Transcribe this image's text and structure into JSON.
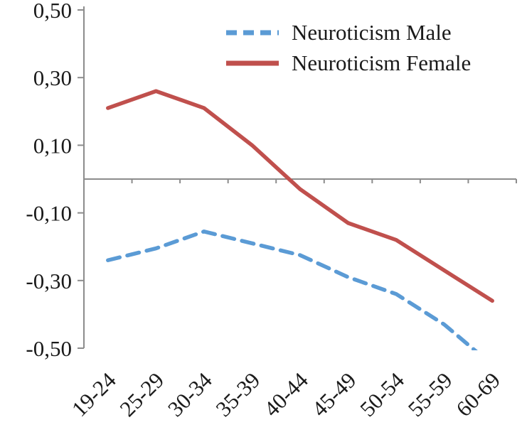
{
  "chart_data": {
    "type": "line",
    "title": "",
    "xlabel": "",
    "ylabel": "",
    "categories": [
      "19-24",
      "25-29",
      "30-34",
      "35-39",
      "40-44",
      "45-49",
      "50-54",
      "55-59",
      "60-69"
    ],
    "series": [
      {
        "name": "Neuroticism Male",
        "color": "#5B9BD5",
        "style": "dashed",
        "values": [
          -0.24,
          -0.205,
          -0.155,
          -0.19,
          -0.225,
          -0.29,
          -0.34,
          -0.43,
          -0.55
        ]
      },
      {
        "name": "Neuroticism Female",
        "color": "#C0504D",
        "style": "solid",
        "values": [
          0.21,
          0.26,
          0.21,
          0.1,
          -0.03,
          -0.13,
          -0.18,
          -0.27,
          -0.36
        ]
      }
    ],
    "ylim": [
      -0.5,
      0.5
    ],
    "y_ticks": [
      0.5,
      0.3,
      0.1,
      -0.1,
      -0.3,
      -0.5
    ],
    "y_tick_labels": [
      "0,50",
      "0,30",
      "0,10",
      "-0,10",
      "-0,30",
      "-0,50"
    ],
    "grid": false,
    "legend_position": "top-right-inside",
    "axis_color": "#8c8c8c",
    "text_color": "#1a1a1a"
  }
}
